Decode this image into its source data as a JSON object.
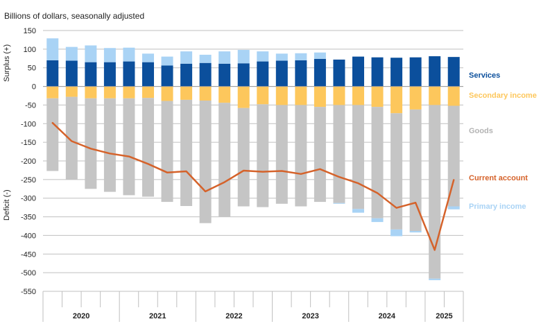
{
  "chart_data": {
    "type": "bar",
    "title": "",
    "subtitle": "Billions of dollars, seasonally adjusted",
    "ylabel_top": "Surplus (+)",
    "ylabel_bottom": "Deficit (-)",
    "ylim": [
      -550,
      150
    ],
    "yticks": [
      150,
      100,
      50,
      0,
      -50,
      -100,
      -150,
      -200,
      -250,
      -300,
      -350,
      -400,
      -450,
      -500,
      -550
    ],
    "quarters": [
      "2020Q1",
      "2020Q2",
      "2020Q3",
      "2020Q4",
      "2021Q1",
      "2021Q2",
      "2021Q3",
      "2021Q4",
      "2022Q1",
      "2022Q2",
      "2022Q3",
      "2022Q4",
      "2023Q1",
      "2023Q2",
      "2023Q3",
      "2023Q4",
      "2024Q1",
      "2024Q2",
      "2024Q3",
      "2024Q4",
      "2025Q1",
      "2025Q2"
    ],
    "year_labels": [
      {
        "label": "2020",
        "start": 0,
        "end": 3
      },
      {
        "label": "2021",
        "start": 4,
        "end": 7
      },
      {
        "label": "2022",
        "start": 8,
        "end": 11
      },
      {
        "label": "2023",
        "start": 12,
        "end": 15
      },
      {
        "label": "2024",
        "start": 16,
        "end": 19
      },
      {
        "label": "2025",
        "start": 20,
        "end": 21
      }
    ],
    "series": [
      {
        "name": "Services",
        "color": "#0b4f9c",
        "values": [
          70,
          69,
          65,
          65,
          67,
          65,
          56,
          61,
          63,
          61,
          62,
          67,
          69,
          70,
          74,
          72,
          80,
          78,
          77,
          78,
          81,
          79
        ]
      },
      {
        "name": "Primary income",
        "color": "#a9d3f5",
        "values_positive": [
          59,
          37,
          45,
          38,
          37,
          23,
          24,
          33,
          22,
          33,
          36,
          27,
          19,
          19,
          17,
          0,
          0,
          0,
          0,
          0,
          0,
          0
        ],
        "values_negative": [
          0,
          0,
          0,
          0,
          0,
          0,
          0,
          0,
          0,
          0,
          0,
          0,
          0,
          0,
          0,
          -2,
          -10,
          -10,
          -18,
          -4,
          -4,
          -8
        ]
      },
      {
        "name": "Secondary income",
        "color": "#fdc75c",
        "values": [
          -32,
          -28,
          -32,
          -32,
          -32,
          -31,
          -39,
          -36,
          -38,
          -44,
          -58,
          -48,
          -50,
          -50,
          -55,
          -50,
          -50,
          -55,
          -72,
          -62,
          -50,
          -52
        ]
      },
      {
        "name": "Goods",
        "color": "#c5c5c5",
        "values": [
          -195,
          -222,
          -243,
          -251,
          -260,
          -265,
          -271,
          -285,
          -329,
          -305,
          -264,
          -276,
          -265,
          -272,
          -255,
          -263,
          -279,
          -299,
          -312,
          -326,
          -466,
          -270
        ]
      },
      {
        "name": "Current account",
        "color": "#d5622a",
        "values": [
          -98,
          -147,
          -167,
          -180,
          -188,
          -208,
          -231,
          -228,
          -282,
          -257,
          -226,
          -229,
          -227,
          -235,
          -222,
          -243,
          -260,
          -286,
          -326,
          -312,
          -439,
          -251
        ]
      }
    ]
  },
  "legend": {
    "services": "Services",
    "secondary_income": "Secondary income",
    "goods": "Goods",
    "current_account": "Current account",
    "primary_income": "Primary income"
  },
  "colors": {
    "services": "#0b4f9c",
    "primary_income": "#a9d3f5",
    "secondary_income": "#fdc75c",
    "goods": "#c5c5c5",
    "current_account": "#d5622a",
    "grid": "#bfbfbf",
    "text": "#222222"
  }
}
